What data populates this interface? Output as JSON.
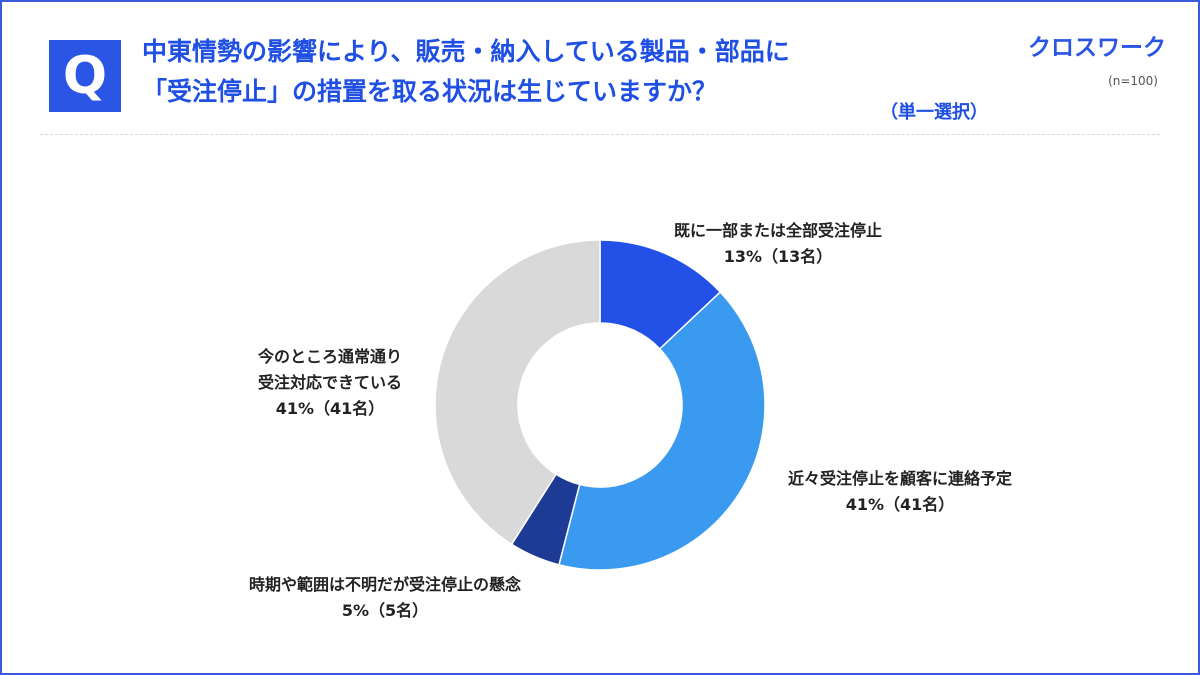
{
  "header": {
    "badge": "Q",
    "title_line1": "中東情勢の影響により、販売・納入している製品・部品に",
    "title_line2": "「受注停止」の措置を取る状況は生じていますか？",
    "question_type": "（単一選択）",
    "brand": "クロスワーク",
    "sample": "(n=100)"
  },
  "colors": {
    "accent": "#2a55e5",
    "text": "#222222"
  },
  "chart_data": {
    "type": "pie",
    "donut": true,
    "slices": [
      {
        "name": "既に一部または全部受注停止",
        "value": 13,
        "label": "13%（13名）",
        "color": "#2350e6"
      },
      {
        "name": "近々受注停止を顧客に連絡予定",
        "value": 41,
        "label": "41%（41名）",
        "color": "#3a9af0"
      },
      {
        "name": "時期や範囲は不明だが受注停止の懸念",
        "value": 5,
        "label": "5%（5名）",
        "color": "#1d3a94"
      },
      {
        "name_lines": [
          "今のところ通常通り",
          "受注対応できている"
        ],
        "value": 41,
        "label": "41%（41名）",
        "color": "#d9d9d9"
      }
    ]
  }
}
